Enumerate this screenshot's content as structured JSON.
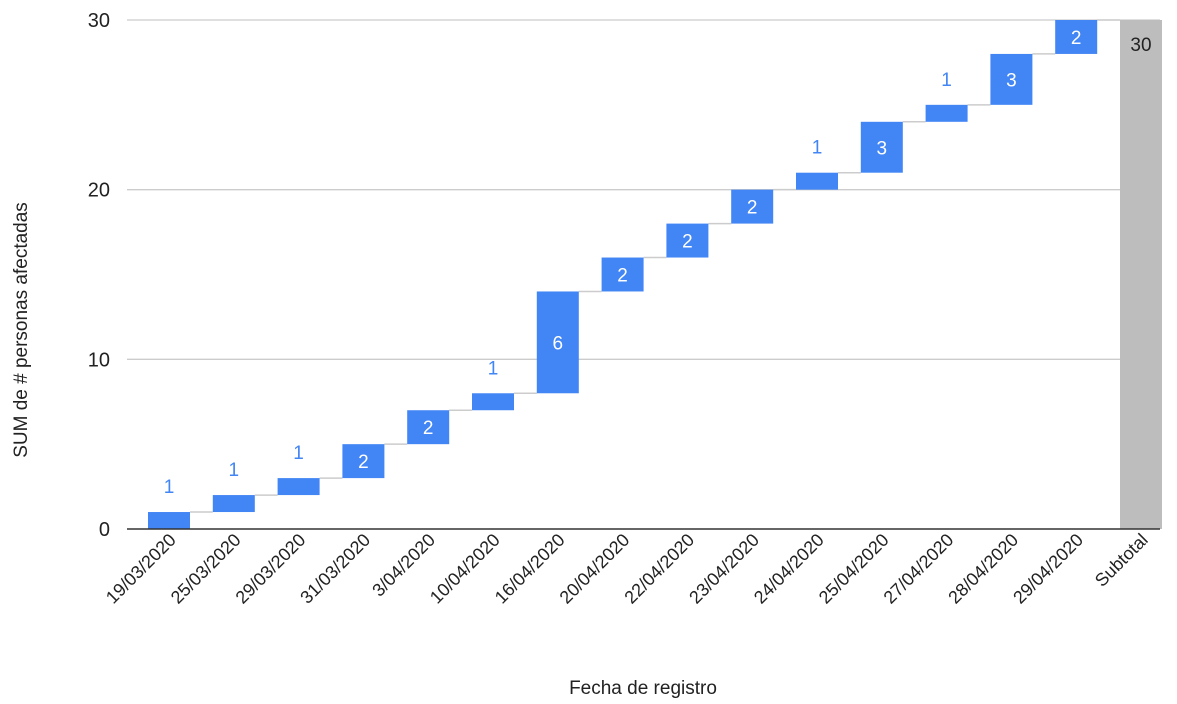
{
  "chart_data": {
    "type": "waterfall",
    "categories": [
      "19/03/2020",
      "25/03/2020",
      "29/03/2020",
      "31/03/2020",
      "3/04/2020",
      "10/04/2020",
      "16/04/2020",
      "20/04/2020",
      "22/04/2020",
      "23/04/2020",
      "24/04/2020",
      "25/04/2020",
      "27/04/2020",
      "28/04/2020",
      "29/04/2020"
    ],
    "values": [
      1,
      1,
      1,
      2,
      2,
      1,
      6,
      2,
      2,
      2,
      1,
      3,
      1,
      3,
      2
    ],
    "subtotal": {
      "label": "Subtotal",
      "value": 30
    },
    "xlabel": "Fecha de registro",
    "ylabel": "SUM de # personas afectadas",
    "ylim": [
      0,
      30
    ],
    "yticks": [
      "0",
      "10",
      "20",
      "30"
    ],
    "grid": true,
    "colors": {
      "increase": "#4285f4",
      "subtotal": "#bdbdbd",
      "connector": "#cccccc",
      "grid": "#cccccc",
      "baseline": "#333333",
      "outside_label": "#4285f4"
    }
  }
}
